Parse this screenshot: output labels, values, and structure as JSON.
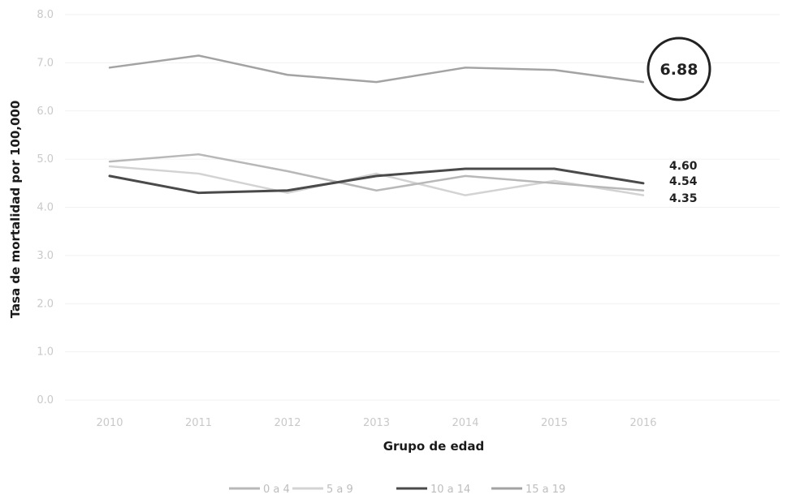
{
  "chart_data": {
    "type": "line",
    "title": "",
    "xlabel": "Grupo de edad",
    "ylabel": "Tasa de mortalidad por 100,000",
    "x": [
      "2010",
      "2011",
      "2012",
      "2013",
      "2014",
      "2015",
      "2016"
    ],
    "ylim": [
      0,
      8
    ],
    "yticks": [
      "0.0",
      "1.0",
      "2.0",
      "3.0",
      "4.0",
      "5.0",
      "6.0",
      "7.0",
      "8.0"
    ],
    "grid": true,
    "legend_position": "bottom",
    "series": [
      {
        "name": "0 a 4",
        "color": "#b8b8b8",
        "values": [
          4.95,
          5.1,
          4.75,
          4.35,
          4.65,
          4.5,
          4.35
        ]
      },
      {
        "name": "5 a 9",
        "color": "#d3d3d3",
        "values": [
          4.85,
          4.7,
          4.3,
          4.7,
          4.25,
          4.55,
          4.25
        ]
      },
      {
        "name": "10 a 14",
        "color": "#4a4a4a",
        "values": [
          4.65,
          4.3,
          4.35,
          4.65,
          4.8,
          4.8,
          4.5
        ]
      },
      {
        "name": "15 a 19",
        "color": "#a3a3a3",
        "values": [
          6.9,
          7.15,
          6.75,
          6.6,
          6.9,
          6.85,
          6.6
        ]
      }
    ],
    "end_labels": [
      "4.60",
      "4.54",
      "4.35"
    ],
    "highlight_label": "6.88"
  }
}
